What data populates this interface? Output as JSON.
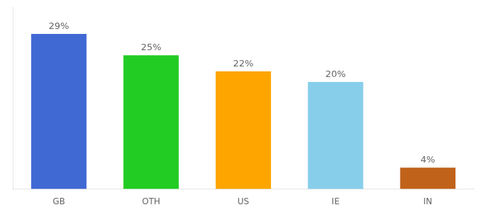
{
  "chart_data": {
    "type": "bar",
    "categories": [
      "GB",
      "OTH",
      "US",
      "IE",
      "IN"
    ],
    "values": [
      29,
      25,
      22,
      20,
      4
    ],
    "value_labels": [
      "29%",
      "25%",
      "22%",
      "20%",
      "4%"
    ],
    "colors": [
      "#4169d4",
      "#22cc22",
      "#ffa500",
      "#87ceeb",
      "#c0621a"
    ],
    "ylim": [
      0,
      34
    ],
    "grid": false,
    "data_labels": true,
    "tick_labels": "x"
  }
}
